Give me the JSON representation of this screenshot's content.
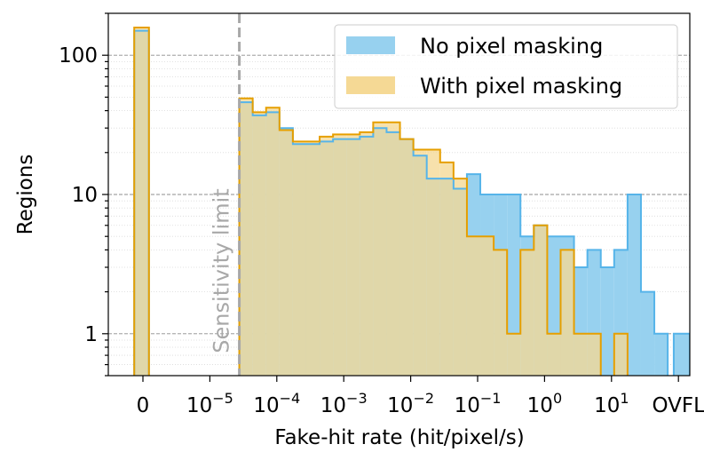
{
  "chart_data": {
    "type": "bar",
    "title": "",
    "xlabel": "Fake-hit rate (hit/pixel/s)",
    "ylabel": "Regions",
    "yscale": "log",
    "ylim": [
      0.5,
      200
    ],
    "grid": "horizontal dashed (major) and dotted (minor)",
    "legend_placement": "top-right",
    "x_ticks": [
      {
        "label": "0",
        "pos": 0
      },
      {
        "label": "10",
        "exp": "−5",
        "pos": 1
      },
      {
        "label": "10",
        "exp": "−4",
        "pos": 2
      },
      {
        "label": "10",
        "exp": "−3",
        "pos": 3
      },
      {
        "label": "10",
        "exp": "−2",
        "pos": 4
      },
      {
        "label": "10",
        "exp": "−1",
        "pos": 5
      },
      {
        "label": "10",
        "exp": "0",
        "pos": 6
      },
      {
        "label": "10",
        "exp": "1",
        "pos": 7
      },
      {
        "label": "OVFL",
        "pos": 8
      }
    ],
    "y_ticks": [
      {
        "label": "1",
        "value": 1
      },
      {
        "label": "10",
        "value": 10
      },
      {
        "label": "100",
        "value": 100
      }
    ],
    "sensitivity_limit": {
      "label": "Sensitivity limit",
      "log10_rate": -4.56
    },
    "zero_bin": {
      "x_range": [
        -0.13,
        0.09
      ],
      "no_masking": 150,
      "with_masking": 158
    },
    "ovfl_bin": {
      "x_range": [
        7.93,
        8.17
      ],
      "no_masking": 1,
      "with_masking": 0
    },
    "log_bins": {
      "start_log10_rate": -4.56,
      "bin_width_decades": 0.2,
      "series": [
        {
          "name": "No pixel masking",
          "color": "#56B4E9",
          "fill": "#97D1EF",
          "values": [
            46,
            37,
            39,
            30,
            23,
            23,
            24,
            25,
            25,
            26,
            30,
            28,
            25,
            19,
            13,
            13,
            11,
            14,
            10,
            10,
            10,
            5,
            6,
            5,
            5,
            3,
            4,
            3,
            4,
            10,
            2,
            1,
            0,
            0,
            0,
            0,
            0,
            0,
            0,
            0,
            0
          ]
        },
        {
          "name": "With pixel masking",
          "color": "#E69F00",
          "fill": "#F5D995",
          "values": [
            49,
            39,
            42,
            29,
            24,
            24,
            26,
            27,
            27,
            28,
            33,
            33,
            25,
            21,
            21,
            17,
            13,
            5,
            5,
            4,
            1,
            4,
            6,
            1,
            4,
            1,
            1,
            0,
            1,
            0,
            0,
            0,
            0,
            0,
            0,
            0,
            0,
            0,
            0,
            0,
            0
          ]
        }
      ]
    }
  }
}
